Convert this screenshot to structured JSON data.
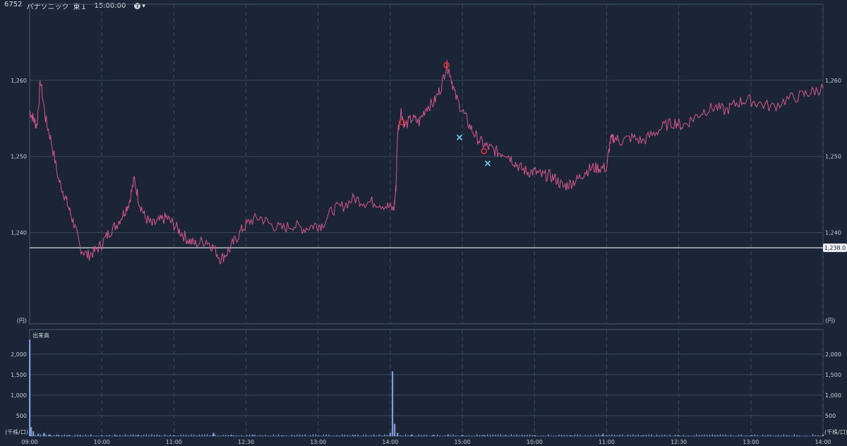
{
  "header": {
    "code": "6752",
    "name": "パナソニック",
    "market": "東１",
    "time": "15:00:00",
    "info_label": "i",
    "dropdown_label": "▾"
  },
  "colors": {
    "background": "#1b2537",
    "grid": "#3a4760",
    "price_line": "#d4568a",
    "reference_line": "#d9dee6",
    "volume": "#7f9fd6",
    "buy_marker": "#e63232",
    "sell_marker": "#6fd0ef"
  },
  "price_panel": {
    "unit_label": "(円)",
    "reference_price": "1,238.0",
    "y_ticks": [
      "1,260",
      "1,250",
      "1,240"
    ]
  },
  "volume_panel": {
    "title": "出来高",
    "unit_label": "(千株/口)",
    "y_ticks": [
      "2,000",
      "1,500",
      "1,000",
      "500"
    ]
  },
  "x_axis": {
    "labels": [
      "09:00",
      "10:00",
      "11:00",
      "12:30",
      "13:00",
      "14:00",
      "15:00",
      "10:00",
      "11:00",
      "12:30",
      "13:00",
      "14:00"
    ]
  },
  "chart_data": {
    "type": "line",
    "x_labels": [
      "09:00",
      "10:00",
      "11:00",
      "12:30",
      "13:00",
      "14:00",
      "15:00",
      "10:00",
      "11:00",
      "12:30",
      "13:00",
      "14:00"
    ],
    "ylim": [
      1228,
      1270
    ],
    "reference_value": 1238,
    "price_series": [
      [
        0,
        1256
      ],
      [
        0.05,
        1255
      ],
      [
        0.1,
        1254
      ],
      [
        0.15,
        1260
      ],
      [
        0.22,
        1255
      ],
      [
        0.3,
        1252
      ],
      [
        0.4,
        1247
      ],
      [
        0.48,
        1245
      ],
      [
        0.55,
        1243
      ],
      [
        0.62,
        1241
      ],
      [
        0.7,
        1238
      ],
      [
        0.8,
        1237
      ],
      [
        0.9,
        1237.5
      ],
      [
        1.0,
        1238.5
      ],
      [
        1.1,
        1240
      ],
      [
        1.2,
        1241
      ],
      [
        1.3,
        1242.5
      ],
      [
        1.38,
        1244
      ],
      [
        1.45,
        1247
      ],
      [
        1.52,
        1244
      ],
      [
        1.6,
        1242
      ],
      [
        1.7,
        1241
      ],
      [
        1.8,
        1241.5
      ],
      [
        1.9,
        1242
      ],
      [
        2.0,
        1241
      ],
      [
        2.1,
        1240
      ],
      [
        2.2,
        1239
      ],
      [
        2.3,
        1238.5
      ],
      [
        2.45,
        1239
      ],
      [
        2.55,
        1238
      ],
      [
        2.65,
        1236.5
      ],
      [
        2.75,
        1237.5
      ],
      [
        2.85,
        1239
      ],
      [
        2.95,
        1240.5
      ],
      [
        3.05,
        1241.5
      ],
      [
        3.2,
        1242
      ],
      [
        3.35,
        1241
      ],
      [
        3.5,
        1240.5
      ],
      [
        3.65,
        1241
      ],
      [
        3.8,
        1240.5
      ],
      [
        3.95,
        1241
      ],
      [
        4.05,
        1241
      ],
      [
        4.2,
        1243
      ],
      [
        4.35,
        1243.5
      ],
      [
        4.5,
        1244.5
      ],
      [
        4.65,
        1244
      ],
      [
        4.8,
        1244
      ],
      [
        4.95,
        1243.5
      ],
      [
        5.05,
        1243
      ],
      [
        5.08,
        1246
      ],
      [
        5.1,
        1253
      ],
      [
        5.15,
        1256
      ],
      [
        5.2,
        1254
      ],
      [
        5.3,
        1255
      ],
      [
        5.4,
        1254.5
      ],
      [
        5.5,
        1256.5
      ],
      [
        5.6,
        1257
      ],
      [
        5.7,
        1259
      ],
      [
        5.78,
        1262
      ],
      [
        5.83,
        1261
      ],
      [
        5.9,
        1258
      ],
      [
        6.0,
        1256
      ],
      [
        6.1,
        1254
      ],
      [
        6.2,
        1252.5
      ],
      [
        6.3,
        1251.5
      ],
      [
        6.4,
        1251
      ],
      [
        6.5,
        1250.5
      ],
      [
        6.6,
        1250.5
      ],
      [
        6.7,
        1249.5
      ],
      [
        6.8,
        1248.5
      ],
      [
        6.9,
        1248
      ],
      [
        7.0,
        1248
      ],
      [
        7.1,
        1247.5
      ],
      [
        7.2,
        1247.5
      ],
      [
        7.3,
        1247
      ],
      [
        7.4,
        1246
      ],
      [
        7.5,
        1246.5
      ],
      [
        7.6,
        1247
      ],
      [
        7.7,
        1248
      ],
      [
        7.8,
        1248.5
      ],
      [
        7.9,
        1248.5
      ],
      [
        8.0,
        1248.5
      ],
      [
        8.05,
        1252
      ],
      [
        8.1,
        1252.5
      ],
      [
        8.2,
        1252
      ],
      [
        8.35,
        1252.5
      ],
      [
        8.5,
        1252
      ],
      [
        8.65,
        1253
      ],
      [
        8.8,
        1254
      ],
      [
        8.95,
        1254.5
      ],
      [
        9.05,
        1254
      ],
      [
        9.2,
        1255
      ],
      [
        9.35,
        1256
      ],
      [
        9.5,
        1256.5
      ],
      [
        9.65,
        1256
      ],
      [
        9.8,
        1257
      ],
      [
        9.95,
        1257.5
      ],
      [
        10.1,
        1257
      ],
      [
        10.3,
        1256.5
      ],
      [
        10.5,
        1257.5
      ],
      [
        10.7,
        1258
      ],
      [
        10.85,
        1258.5
      ],
      [
        11.0,
        1259
      ]
    ],
    "volume_series": [
      [
        0.0,
        2350
      ],
      [
        0.02,
        220
      ],
      [
        0.05,
        120
      ],
      [
        0.12,
        60
      ],
      [
        0.2,
        80
      ],
      [
        0.28,
        40
      ],
      [
        0.4,
        30
      ],
      [
        0.55,
        30
      ],
      [
        0.7,
        20
      ],
      [
        0.85,
        20
      ],
      [
        1.0,
        20
      ],
      [
        1.2,
        20
      ],
      [
        1.5,
        20
      ],
      [
        1.8,
        20
      ],
      [
        2.0,
        20
      ],
      [
        2.5,
        15
      ],
      [
        2.55,
        80
      ],
      [
        2.8,
        20
      ],
      [
        3.1,
        15
      ],
      [
        3.5,
        15
      ],
      [
        4.0,
        15
      ],
      [
        4.5,
        15
      ],
      [
        5.0,
        80
      ],
      [
        5.03,
        1580
      ],
      [
        5.06,
        300
      ],
      [
        5.1,
        80
      ],
      [
        5.3,
        40
      ],
      [
        5.6,
        30
      ],
      [
        5.8,
        40
      ],
      [
        6.0,
        30
      ],
      [
        6.3,
        25
      ],
      [
        6.6,
        25
      ],
      [
        7.0,
        20
      ],
      [
        7.5,
        20
      ],
      [
        7.95,
        60
      ],
      [
        8.0,
        20
      ],
      [
        8.5,
        15
      ],
      [
        9.0,
        15
      ],
      [
        9.5,
        15
      ],
      [
        10.0,
        15
      ],
      [
        10.5,
        15
      ],
      [
        11.0,
        40
      ]
    ],
    "trade_markers": [
      {
        "type": "buy",
        "x": 5.16,
        "y": 1254.5
      },
      {
        "type": "buy",
        "x": 5.78,
        "y": 1262
      },
      {
        "type": "sell",
        "x": 5.96,
        "y": 1252.5
      },
      {
        "type": "buy",
        "x": 6.3,
        "y": 1250.7
      },
      {
        "type": "sell",
        "x": 6.35,
        "y": 1249.1
      }
    ]
  }
}
